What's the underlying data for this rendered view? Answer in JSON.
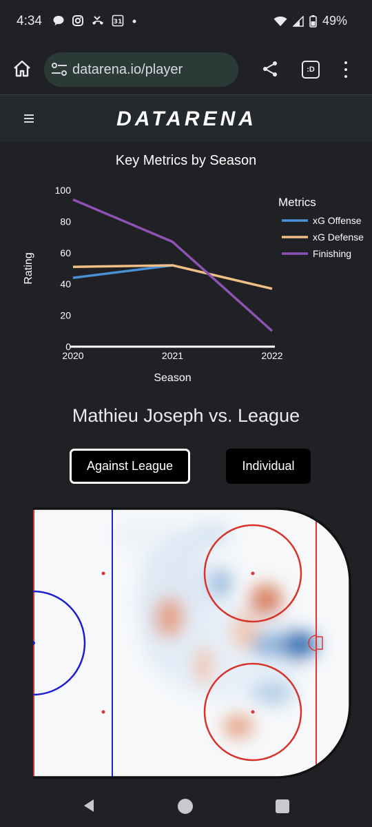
{
  "status_bar": {
    "time": "4:34",
    "left_icons": [
      "chat-bubble-icon",
      "instagram-icon",
      "missed-call-icon",
      "calendar-icon",
      "dot-icon"
    ],
    "calendar_day": "31",
    "battery": "49%"
  },
  "browser": {
    "url": "datarena.io/player",
    "tab_label": ":D"
  },
  "site": {
    "logo": "DATARENA"
  },
  "chart_data": {
    "type": "line",
    "title": "Key Metrics by Season",
    "xlabel": "Season",
    "ylabel": "Rating",
    "x": [
      "2020",
      "2021",
      "2022"
    ],
    "y_ticks": [
      "0",
      "20",
      "40",
      "60",
      "80",
      "100"
    ],
    "ylim": [
      0,
      100
    ],
    "legend_title": "Metrics",
    "legend_position": "right",
    "series": [
      {
        "name": "xG Offense",
        "color": "#4a8fd6",
        "values": [
          44,
          52,
          null
        ]
      },
      {
        "name": "xG Defense",
        "color": "#efbf86",
        "values": [
          51,
          52,
          37
        ]
      },
      {
        "name": "Finishing",
        "color": "#8e52b3",
        "values": [
          94,
          67,
          10
        ]
      }
    ]
  },
  "player": {
    "heading": "Mathieu Joseph vs. League"
  },
  "buttons": {
    "against_league": "Against League",
    "individual": "Individual"
  }
}
